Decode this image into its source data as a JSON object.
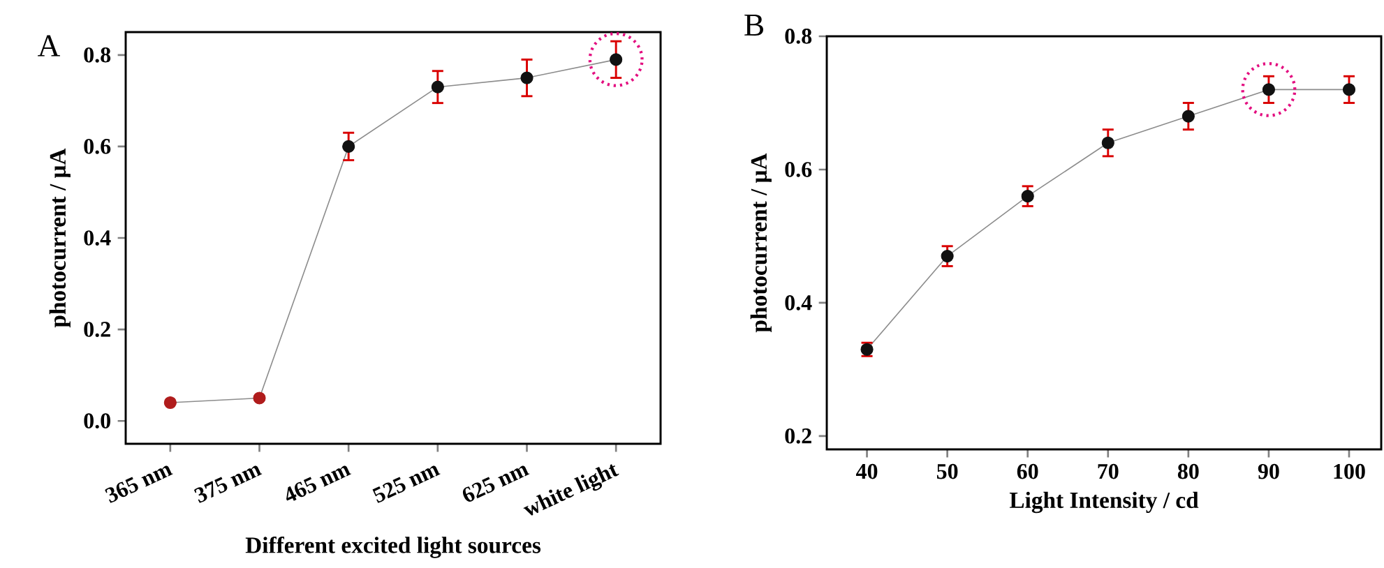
{
  "chart_data": [
    {
      "type": "line",
      "title": "A",
      "xlabel": "Different excited light sources",
      "ylabel": "photocurrent / μA",
      "categories": [
        "365 nm",
        "375 nm",
        "465 nm",
        "525 nm",
        "625 nm",
        "white light"
      ],
      "series": [
        {
          "color": "#8c8c8c",
          "values": [
            0.04,
            0.05,
            0.6,
            0.73,
            0.75,
            0.79
          ],
          "errors": [
            null,
            null,
            0.03,
            0.035,
            0.04,
            0.04
          ],
          "colors": [
            "#b01c1c",
            "#b01c1c",
            "#111111",
            "#111111",
            "#111111",
            "#111111"
          ]
        }
      ],
      "marker": "circle",
      "ylim": [
        -0.05,
        0.85
      ],
      "yticks": [
        {
          "value": 0,
          "label": "0.0"
        },
        0.2,
        0.4,
        0.6,
        0.8
      ]
    },
    {
      "type": "line",
      "title": "B",
      "xlabel": "Light Intensity / cd",
      "ylabel": "photocurrent / μA",
      "x": [
        40,
        50,
        60,
        70,
        80,
        90,
        100
      ],
      "series": [
        {
          "color": "#8c8c8c",
          "values": [
            0.33,
            0.47,
            0.56,
            0.64,
            0.68,
            0.72,
            0.72
          ],
          "errors": [
            0.01,
            0.015,
            0.015,
            0.02,
            0.02,
            0.02,
            0.02
          ],
          "colors": [
            "#111111",
            "#111111",
            "#111111",
            "#111111",
            "#111111",
            "#111111",
            "#111111"
          ]
        }
      ],
      "marker": "circle",
      "xlim": [
        35,
        104
      ],
      "xticks": [
        40,
        50,
        60,
        70,
        80,
        90,
        100
      ],
      "ylim": [
        0.18,
        0.8
      ],
      "yticks": [
        0.2,
        0.4,
        0.6,
        0.8
      ]
    }
  ]
}
